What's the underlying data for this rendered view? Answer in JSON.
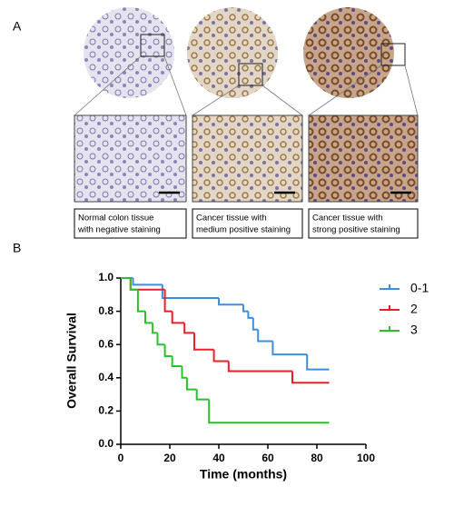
{
  "panel_a": {
    "label": "A",
    "captions": [
      [
        "Normal colon tissue",
        "with negative staining"
      ],
      [
        "Cancer tissue with",
        "medium positive staining"
      ],
      [
        "Cancer tissue with",
        "strong positive staining"
      ]
    ]
  },
  "chart_data": {
    "type": "step",
    "panel_label": "B",
    "x_label": "Time (months)",
    "y_label": "Overall Survival",
    "xlim": [
      0,
      100
    ],
    "xticks": [
      0,
      20,
      40,
      60,
      80,
      100
    ],
    "ylim": [
      0,
      1
    ],
    "yticks": [
      {
        "value": 0,
        "label": "0.0"
      },
      0.2,
      0.4,
      0.6,
      0.8,
      {
        "value": 1,
        "label": "1.0"
      }
    ],
    "series": [
      {
        "name": "0-1",
        "color": "#3a8fe0",
        "x": [
          0,
          5,
          17,
          40,
          50,
          52,
          54,
          56,
          62,
          76,
          85
        ],
        "values": [
          1.0,
          0.96,
          0.88,
          0.84,
          0.8,
          0.76,
          0.69,
          0.62,
          0.54,
          0.45,
          0.45
        ]
      },
      {
        "name": "2",
        "color": "#e8202a",
        "x": [
          0,
          4,
          18,
          21,
          26,
          30,
          38,
          44,
          70,
          85
        ],
        "values": [
          1.0,
          0.93,
          0.8,
          0.73,
          0.67,
          0.57,
          0.5,
          0.44,
          0.37,
          0.37
        ]
      },
      {
        "name": "3",
        "color": "#2cc02c",
        "x": [
          0,
          4,
          7,
          10,
          13,
          15,
          18,
          21,
          25,
          27,
          31,
          36,
          85
        ],
        "values": [
          1.0,
          0.93,
          0.8,
          0.73,
          0.67,
          0.6,
          0.53,
          0.47,
          0.4,
          0.33,
          0.27,
          0.13,
          0.13
        ]
      }
    ]
  }
}
